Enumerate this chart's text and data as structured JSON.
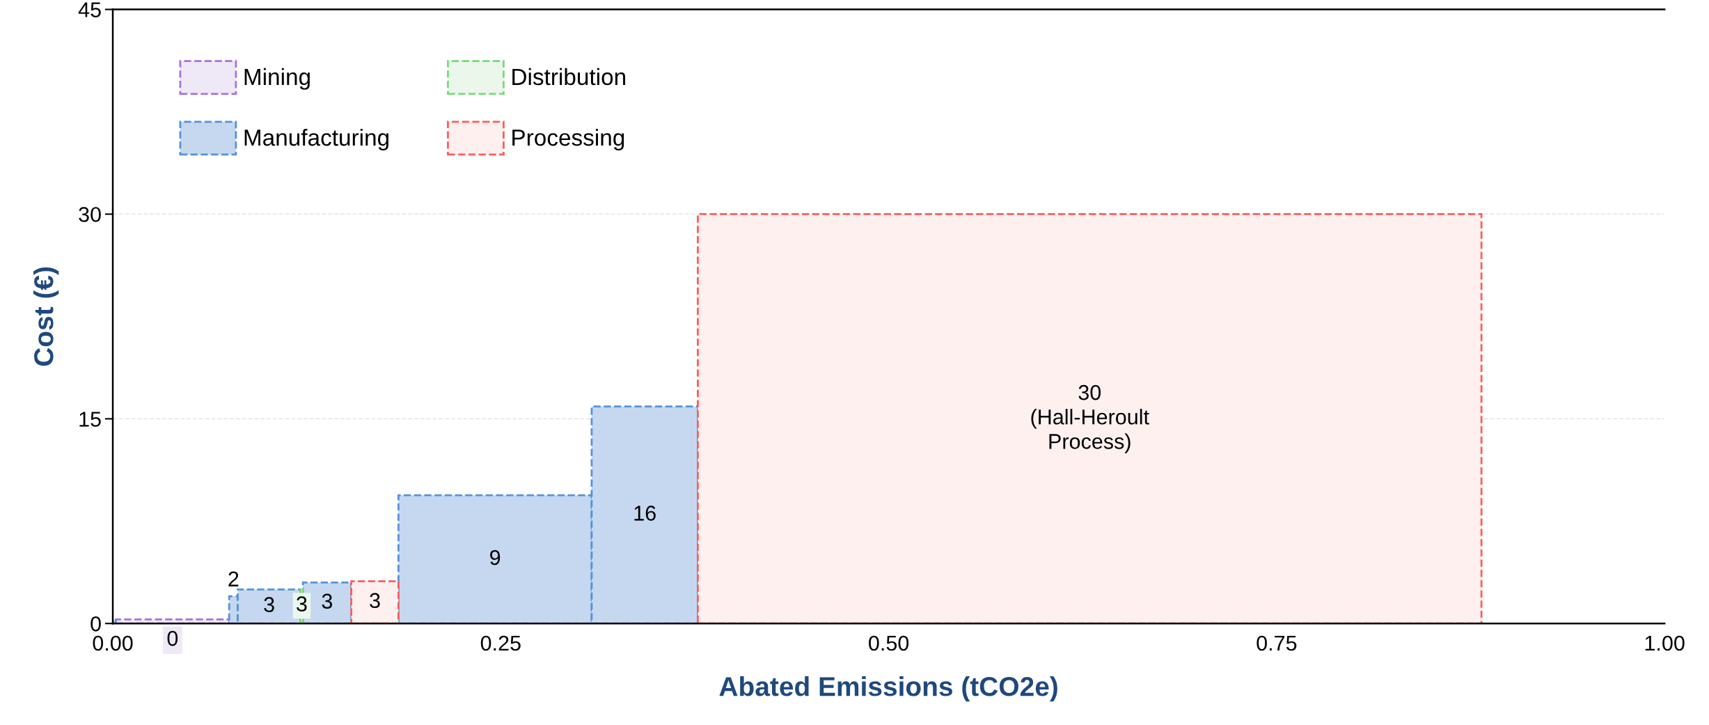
{
  "chart_data": {
    "type": "bar",
    "xlabel": "Abated Emissions (tCO2e)",
    "ylabel": "Cost (€)",
    "xlim": [
      0,
      1
    ],
    "xticks": [
      {
        "value": 0,
        "label": "0.00"
      },
      {
        "value": 0.25,
        "label": "0.25"
      },
      {
        "value": 0.5,
        "label": "0.50"
      },
      {
        "value": 0.75,
        "label": "0.75"
      },
      {
        "value": 1,
        "label": "1.00"
      }
    ],
    "ylim": [
      0,
      45
    ],
    "yticks": [
      0,
      15,
      30,
      45
    ],
    "grid": "y",
    "legend": "top left",
    "line_style": "dashed",
    "series": [
      {
        "name": "Mining",
        "color": "#efe8f7",
        "x": [
          0.0385
        ],
        "values": [
          0.3
        ],
        "value_labels": [
          "0"
        ]
      },
      {
        "name": "Manufacturing",
        "color": "#c5d8ef",
        "x": [
          0.001,
          0.07775,
          0.10075,
          0.1381,
          0.24635,
          0.3428
        ],
        "values": [
          0.3,
          2.0,
          2.5,
          3.0,
          9.4,
          15.9
        ],
        "value_labels": [
          null,
          "2",
          "3",
          "3",
          "9",
          "16"
        ]
      },
      {
        "name": "Distribution",
        "color": "#eaf7ea",
        "x": [
          0.12175
        ],
        "values": [
          2.6
        ],
        "value_labels": [
          "3"
        ]
      },
      {
        "name": "Processing",
        "color": "#fff0f0",
        "x": [
          0.1689,
          0.6295
        ],
        "values": [
          3.1,
          30
        ],
        "value_labels": [
          "3",
          "30\n(Hall-Heroult\nProcess)"
        ]
      }
    ]
  }
}
